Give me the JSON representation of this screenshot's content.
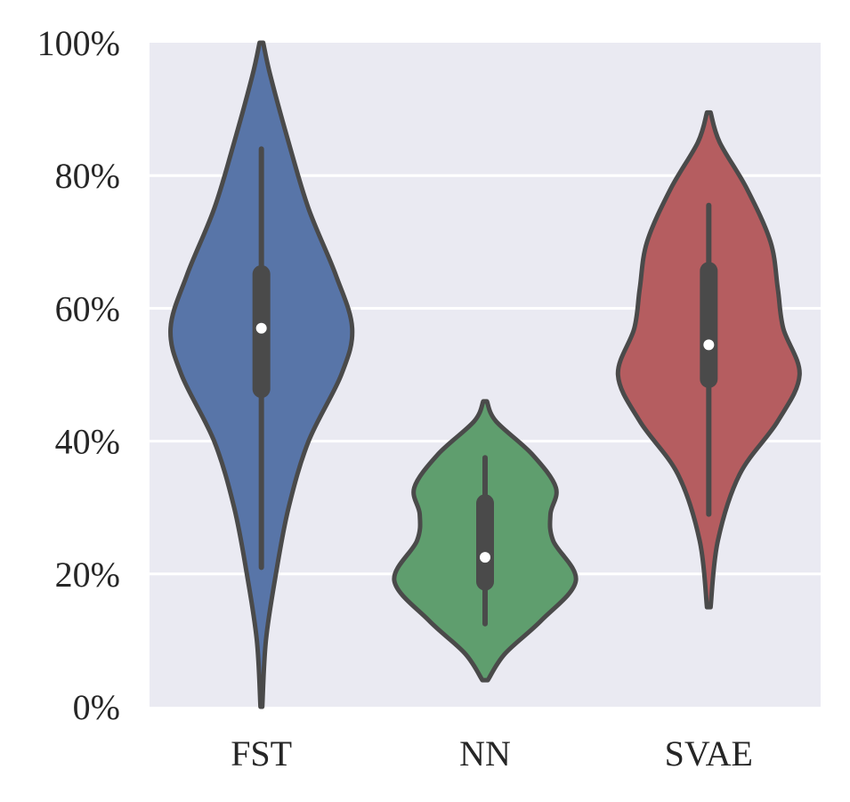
{
  "chart_data": {
    "type": "violin",
    "title": "",
    "xlabel": "",
    "ylabel": "",
    "ylim": [
      0,
      1
    ],
    "yticks": [
      {
        "value": 0.0,
        "label": "0%"
      },
      {
        "value": 0.2,
        "label": "20%"
      },
      {
        "value": 0.4,
        "label": "40%"
      },
      {
        "value": 0.6,
        "label": "60%"
      },
      {
        "value": 0.8,
        "label": "80%"
      },
      {
        "value": 1.0,
        "label": "100%"
      }
    ],
    "grid": true,
    "background_color": "#eaeaf2",
    "categories": [
      "FST",
      "NN",
      "SVAE"
    ],
    "series": [
      {
        "category": "FST",
        "color": "#5875a8",
        "min": 0.0,
        "max": 1.0,
        "whisker_low": 0.21,
        "q1": 0.465,
        "median": 0.57,
        "q3": 0.665,
        "whisker_high": 0.84,
        "density_profile": [
          [
            0.0,
            0.01
          ],
          [
            0.1,
            0.05
          ],
          [
            0.2,
            0.16
          ],
          [
            0.3,
            0.3
          ],
          [
            0.4,
            0.52
          ],
          [
            0.5,
            0.88
          ],
          [
            0.57,
            1.0
          ],
          [
            0.65,
            0.82
          ],
          [
            0.75,
            0.52
          ],
          [
            0.85,
            0.3
          ],
          [
            0.95,
            0.1
          ],
          [
            1.0,
            0.02
          ]
        ]
      },
      {
        "category": "NN",
        "color": "#5f9e6e",
        "min": 0.04,
        "max": 0.46,
        "whisker_low": 0.125,
        "q1": 0.175,
        "median": 0.225,
        "q3": 0.32,
        "whisker_high": 0.375,
        "density_profile": [
          [
            0.04,
            0.03
          ],
          [
            0.08,
            0.22
          ],
          [
            0.13,
            0.62
          ],
          [
            0.19,
            1.0
          ],
          [
            0.25,
            0.75
          ],
          [
            0.29,
            0.72
          ],
          [
            0.33,
            0.78
          ],
          [
            0.38,
            0.52
          ],
          [
            0.43,
            0.12
          ],
          [
            0.46,
            0.02
          ]
        ]
      },
      {
        "category": "SVAE",
        "color": "#b55d60",
        "min": 0.15,
        "max": 0.895,
        "whisker_low": 0.29,
        "q1": 0.48,
        "median": 0.545,
        "q3": 0.67,
        "whisker_high": 0.755,
        "density_profile": [
          [
            0.15,
            0.02
          ],
          [
            0.25,
            0.1
          ],
          [
            0.35,
            0.34
          ],
          [
            0.43,
            0.76
          ],
          [
            0.5,
            1.0
          ],
          [
            0.57,
            0.82
          ],
          [
            0.63,
            0.76
          ],
          [
            0.7,
            0.68
          ],
          [
            0.78,
            0.42
          ],
          [
            0.85,
            0.12
          ],
          [
            0.895,
            0.02
          ]
        ]
      }
    ]
  }
}
